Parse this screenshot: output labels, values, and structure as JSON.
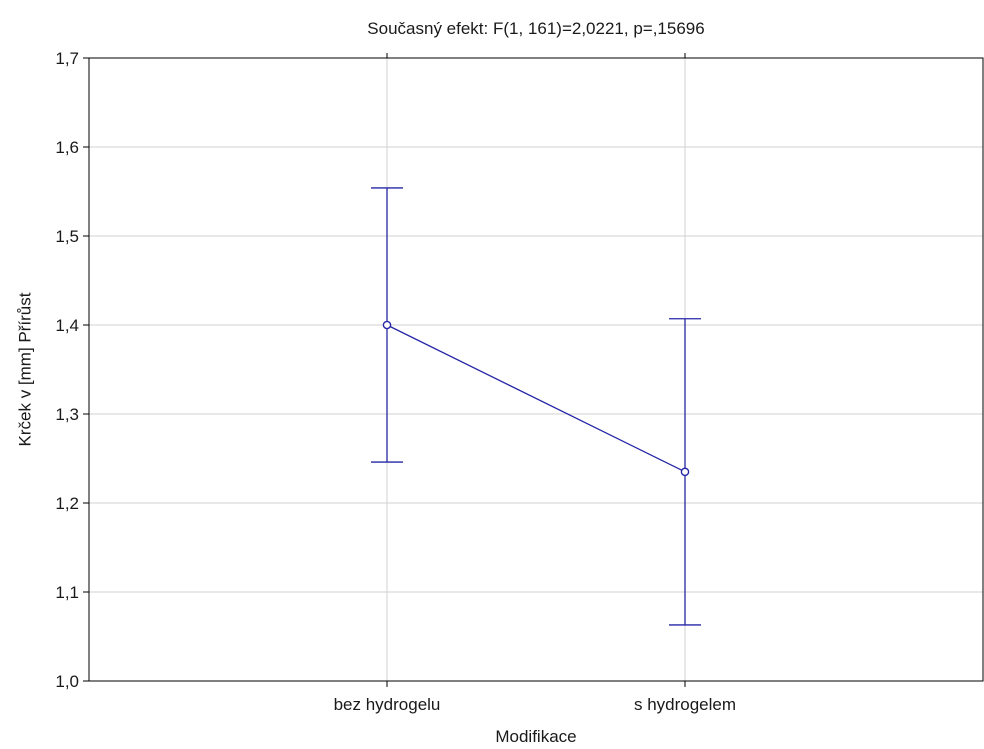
{
  "chart_data": {
    "type": "line",
    "title": "Současný efekt: F(1, 161)=2,0221, p=,15696",
    "xlabel": "Modifikace",
    "ylabel": "Krček v [mm] Přírůst",
    "categories": [
      "bez hydrogelu",
      "s hydrogelem"
    ],
    "ylim": [
      1.0,
      1.7
    ],
    "yticks": [
      "1,0",
      "1,1",
      "1,2",
      "1,3",
      "1,4",
      "1,5",
      "1,6",
      "1,7"
    ],
    "grid": true,
    "series": [
      {
        "values": [
          1.4,
          1.235
        ],
        "error_low": [
          1.246,
          1.063
        ],
        "error_high": [
          1.554,
          1.407
        ]
      }
    ],
    "colors": {
      "series": "#2626a6",
      "grid": "#d0d0d0",
      "axis": "#000000"
    }
  }
}
